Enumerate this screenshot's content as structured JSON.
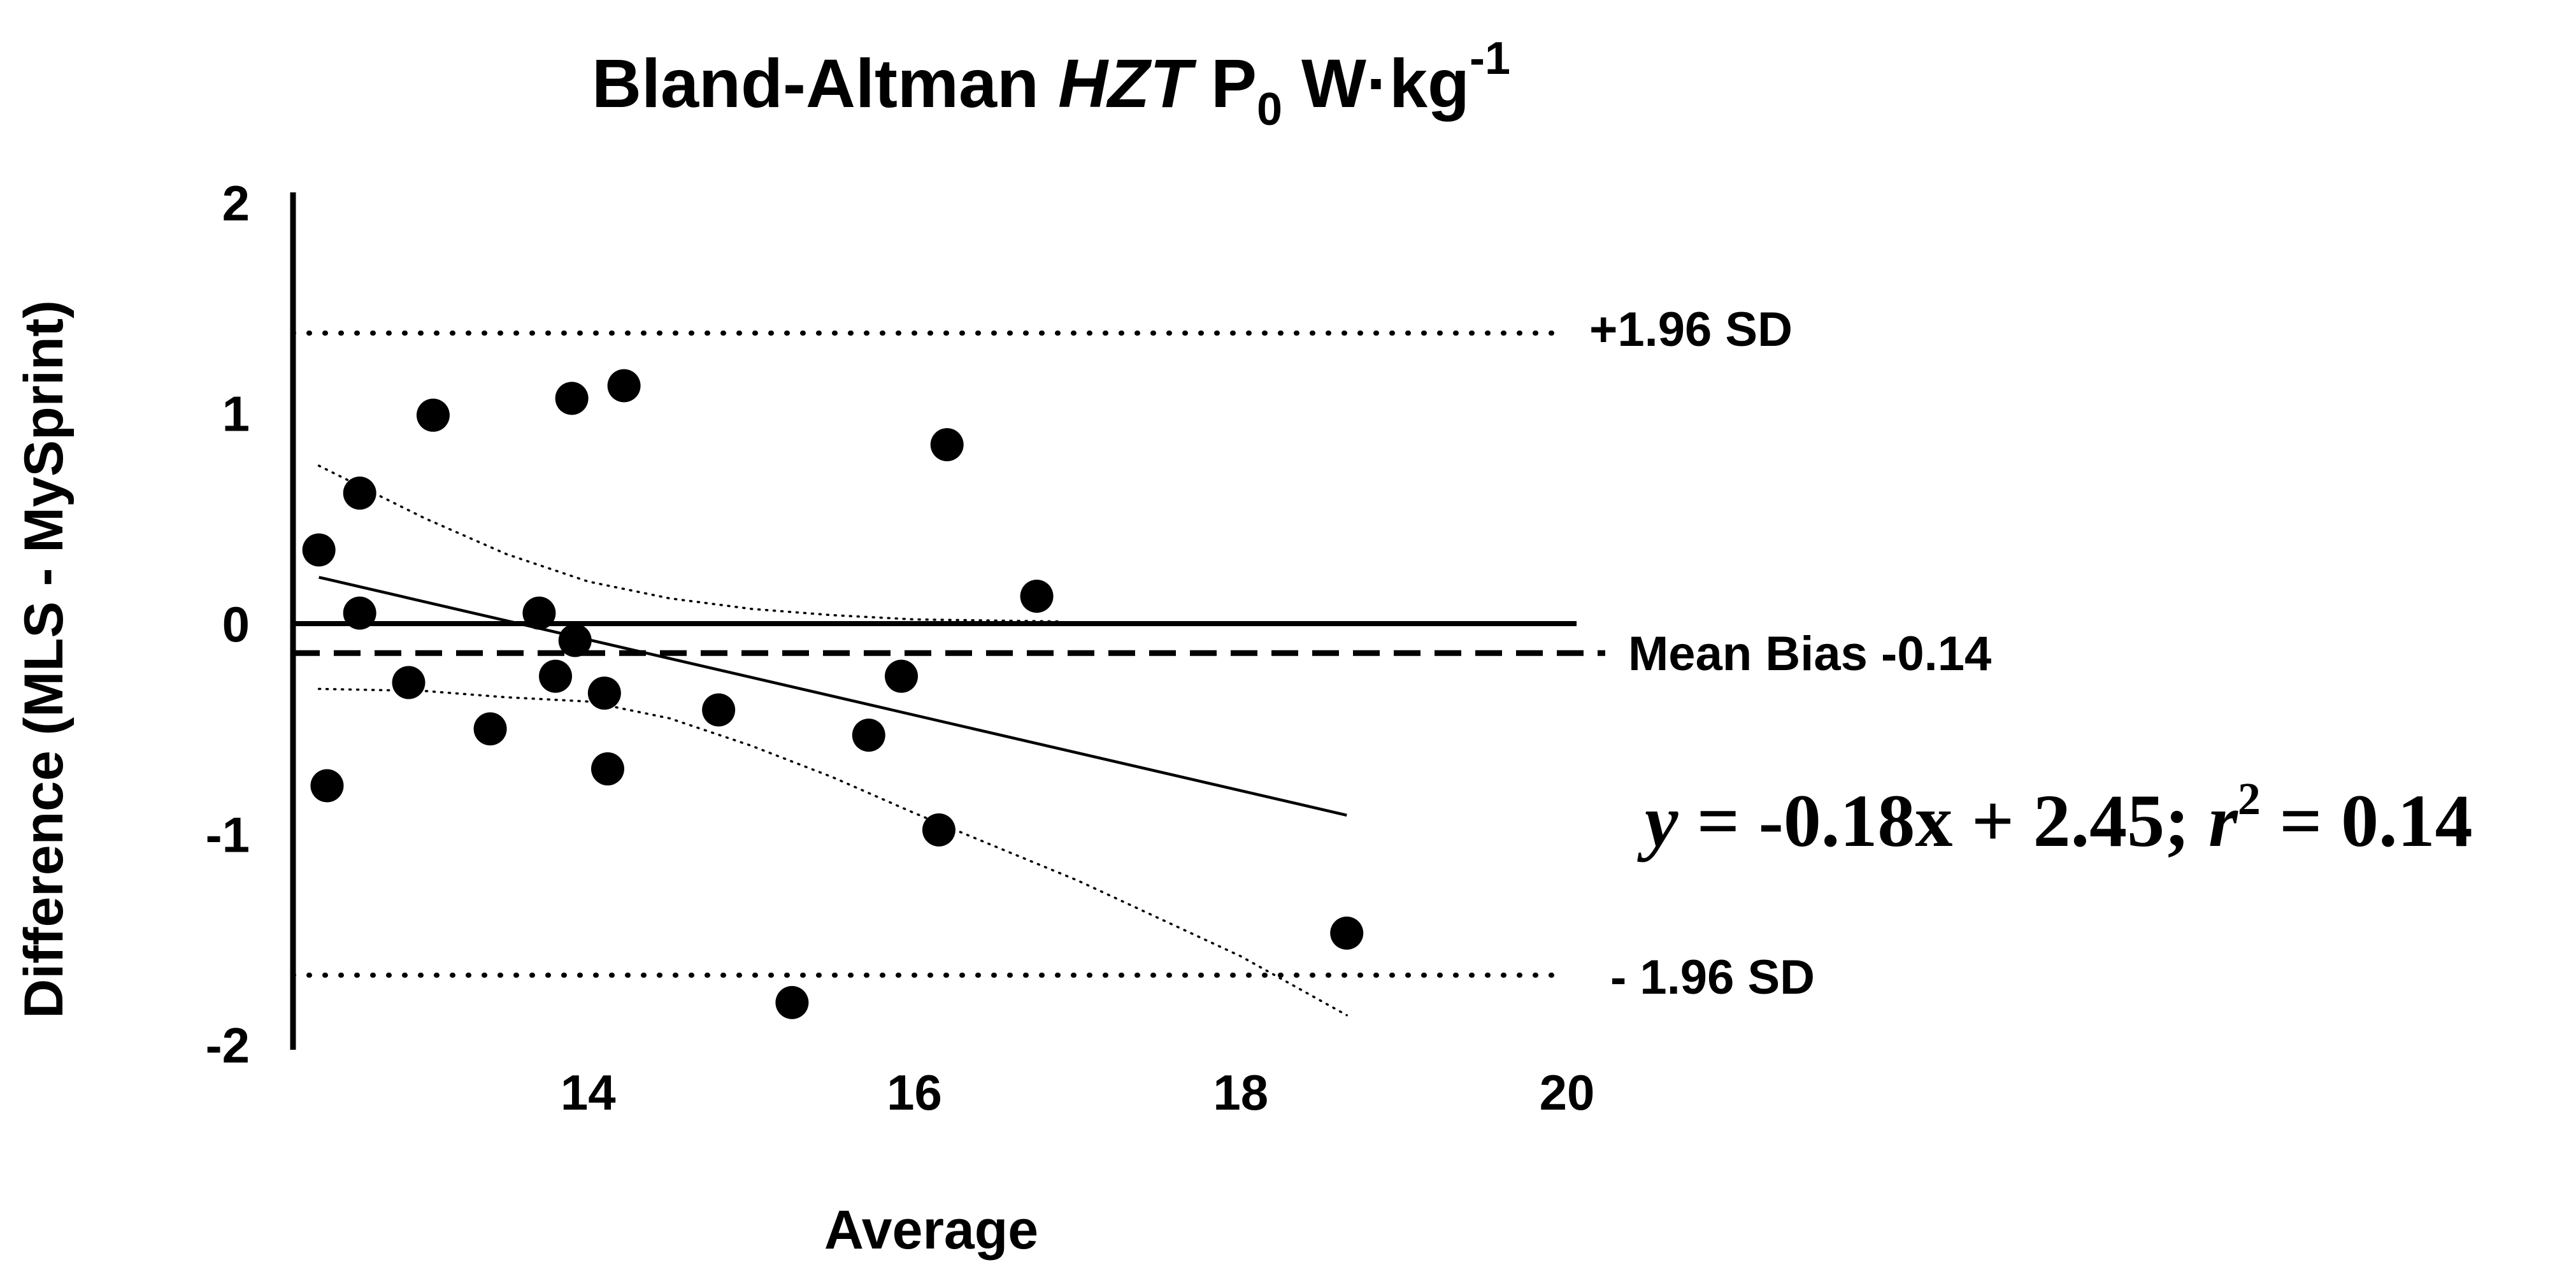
{
  "chart_data": {
    "type": "scatter",
    "title": {
      "prefix": "Bland-Altman ",
      "italic": "HZT",
      "mid": " P",
      "subscript": "0",
      "unit": " W·kg",
      "superscript": "-1"
    },
    "xlabel": "Average",
    "ylabel": "Difference (MLS - MySprint)",
    "xlim": [
      12.0,
      20.0
    ],
    "ylim": [
      -2,
      2
    ],
    "xticks": [
      14,
      16,
      18,
      20
    ],
    "yticks": [
      2,
      1,
      0,
      -1,
      -2
    ],
    "series": [
      {
        "name": "Differences",
        "points": [
          {
            "x": 12.35,
            "y": 0.35
          },
          {
            "x": 12.4,
            "y": -0.77
          },
          {
            "x": 12.6,
            "y": 0.62
          },
          {
            "x": 12.6,
            "y": 0.05
          },
          {
            "x": 12.9,
            "y": -0.28
          },
          {
            "x": 13.05,
            "y": 0.99
          },
          {
            "x": 13.4,
            "y": -0.5
          },
          {
            "x": 13.7,
            "y": 0.05
          },
          {
            "x": 13.8,
            "y": -0.25
          },
          {
            "x": 13.9,
            "y": 1.07
          },
          {
            "x": 13.92,
            "y": -0.08
          },
          {
            "x": 14.1,
            "y": -0.33
          },
          {
            "x": 14.12,
            "y": -0.69
          },
          {
            "x": 14.22,
            "y": 1.13
          },
          {
            "x": 14.8,
            "y": -0.41
          },
          {
            "x": 15.25,
            "y": -1.8
          },
          {
            "x": 15.72,
            "y": -0.53
          },
          {
            "x": 15.92,
            "y": -0.25
          },
          {
            "x": 16.15,
            "y": -0.98
          },
          {
            "x": 16.2,
            "y": 0.85
          },
          {
            "x": 16.75,
            "y": 0.13
          },
          {
            "x": 18.65,
            "y": -1.47
          }
        ]
      }
    ],
    "reference_lines": [
      {
        "name": "+1.96 SD",
        "y": 1.38,
        "style": "dotted"
      },
      {
        "name": "Zero",
        "y": 0,
        "style": "solid"
      },
      {
        "name": "Mean Bias -0.14",
        "y": -0.14,
        "style": "dashed"
      },
      {
        "name": "- 1.96 SD",
        "y": -1.67,
        "style": "dotted"
      }
    ],
    "regression": {
      "slope": -0.18,
      "intercept": 2.45,
      "x_range": [
        12.35,
        18.65
      ],
      "endpoints": [
        {
          "x": 12.35,
          "y": 0.22
        },
        {
          "x": 18.65,
          "y": -0.91
        }
      ],
      "equation": {
        "y": "y",
        "body": " = -0.18x + 2.45; ",
        "r": "r",
        "exp": "2",
        "tail": " = 0.14"
      }
    },
    "confidence_band": {
      "upper": [
        {
          "x": 12.35,
          "y": 0.75
        },
        {
          "x": 13.0,
          "y": 0.5
        },
        {
          "x": 13.5,
          "y": 0.33
        },
        {
          "x": 14.0,
          "y": 0.2
        },
        {
          "x": 14.5,
          "y": 0.12
        },
        {
          "x": 15.0,
          "y": 0.07
        },
        {
          "x": 15.5,
          "y": 0.04
        },
        {
          "x": 16.0,
          "y": 0.02
        },
        {
          "x": 16.9,
          "y": 0.01
        }
      ],
      "lower": [
        {
          "x": 12.35,
          "y": -0.31
        },
        {
          "x": 13.0,
          "y": -0.32
        },
        {
          "x": 13.5,
          "y": -0.35
        },
        {
          "x": 14.0,
          "y": -0.37
        },
        {
          "x": 14.5,
          "y": -0.45
        },
        {
          "x": 15.0,
          "y": -0.58
        },
        {
          "x": 15.5,
          "y": -0.73
        },
        {
          "x": 16.0,
          "y": -0.9
        },
        {
          "x": 17.0,
          "y": -1.22
        },
        {
          "x": 18.0,
          "y": -1.58
        },
        {
          "x": 18.65,
          "y": -1.86
        }
      ]
    },
    "annotations": {
      "upper_sd": "+1.96 SD",
      "mean_bias": "Mean Bias -0.14",
      "lower_sd": "- 1.96 SD"
    },
    "grid": false,
    "legend": "none"
  }
}
